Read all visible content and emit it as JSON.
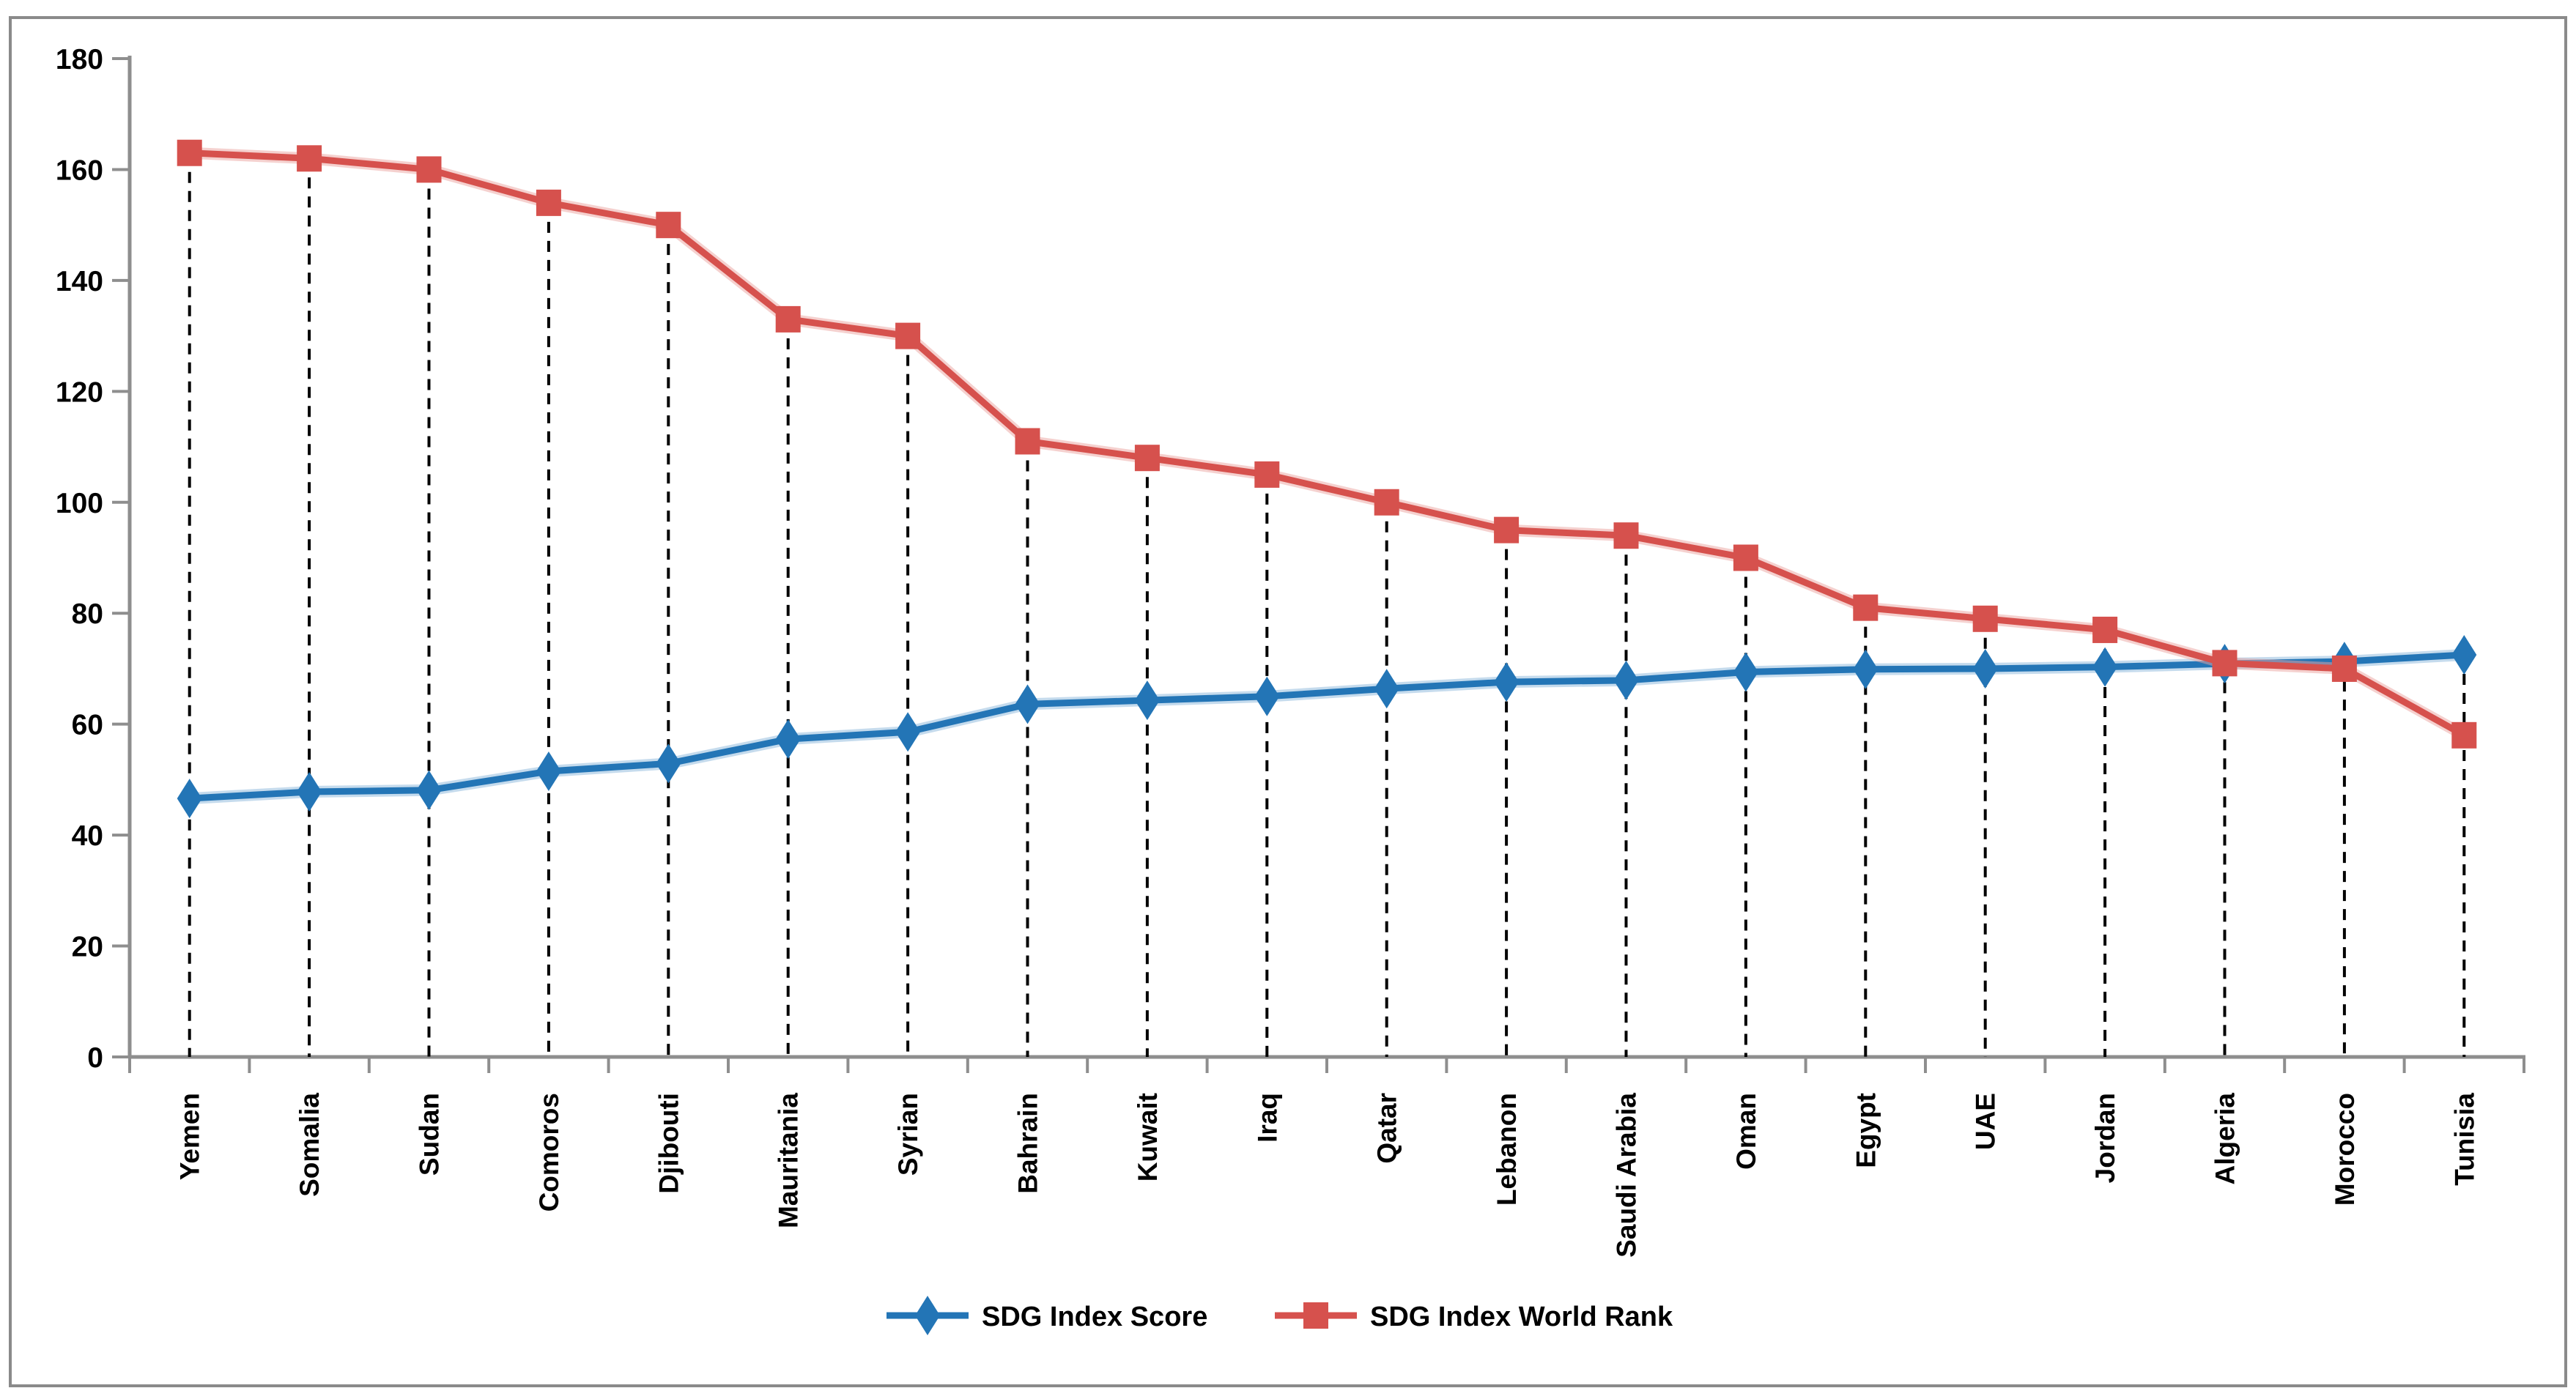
{
  "chart_data": {
    "type": "line",
    "title": "",
    "categories": [
      "Yemen",
      "Somalia",
      "Sudan",
      "Comoros",
      "Djibouti",
      "Mauritania",
      "Syrian",
      "Bahrain",
      "Kuwait",
      "Iraq",
      "Qatar",
      "Lebanon",
      "Saudi Arabia",
      "Oman",
      "Egypt",
      "UAE",
      "Jordan",
      "Algeria",
      "Morocco",
      "Tunisia"
    ],
    "series": [
      {
        "name": "SDG Index Score",
        "marker": "diamond",
        "color": "#2375B6",
        "halo_color": "#8BB8DC",
        "values": [
          46.6,
          47.8,
          48.1,
          51.5,
          52.9,
          57.3,
          58.6,
          63.6,
          64.3,
          65.0,
          66.4,
          67.6,
          67.9,
          69.4,
          69.9,
          70.0,
          70.3,
          70.9,
          71.3,
          72.5
        ]
      },
      {
        "name": "SDG Index World Rank",
        "marker": "square",
        "color": "#D6514D",
        "halo_color": "#EBA3A0",
        "values": [
          163,
          162,
          160,
          154,
          150,
          133,
          130,
          111,
          108,
          105,
          100,
          95,
          94,
          90,
          81,
          79,
          77,
          71,
          70,
          58
        ]
      }
    ],
    "xlabel": "",
    "ylabel": "",
    "ylim": [
      0,
      180
    ],
    "y_ticks": [
      0,
      20,
      40,
      60,
      80,
      100,
      120,
      140,
      160,
      180
    ],
    "x_label_rotation": -90,
    "grid": "vertical dashed drop lines from top series point to baseline",
    "legend_position": "bottom-center"
  },
  "legend": {
    "items": [
      {
        "label": "SDG Index Score",
        "marker": "diamond",
        "color": "#2375B6"
      },
      {
        "label": "SDG Index World Rank",
        "marker": "square",
        "color": "#D6514D"
      }
    ]
  },
  "colors": {
    "axis": "#8E8E8E",
    "border": "#8A8A8A",
    "dropline": "#000000",
    "text": "#000000",
    "background": "#FFFFFF"
  }
}
